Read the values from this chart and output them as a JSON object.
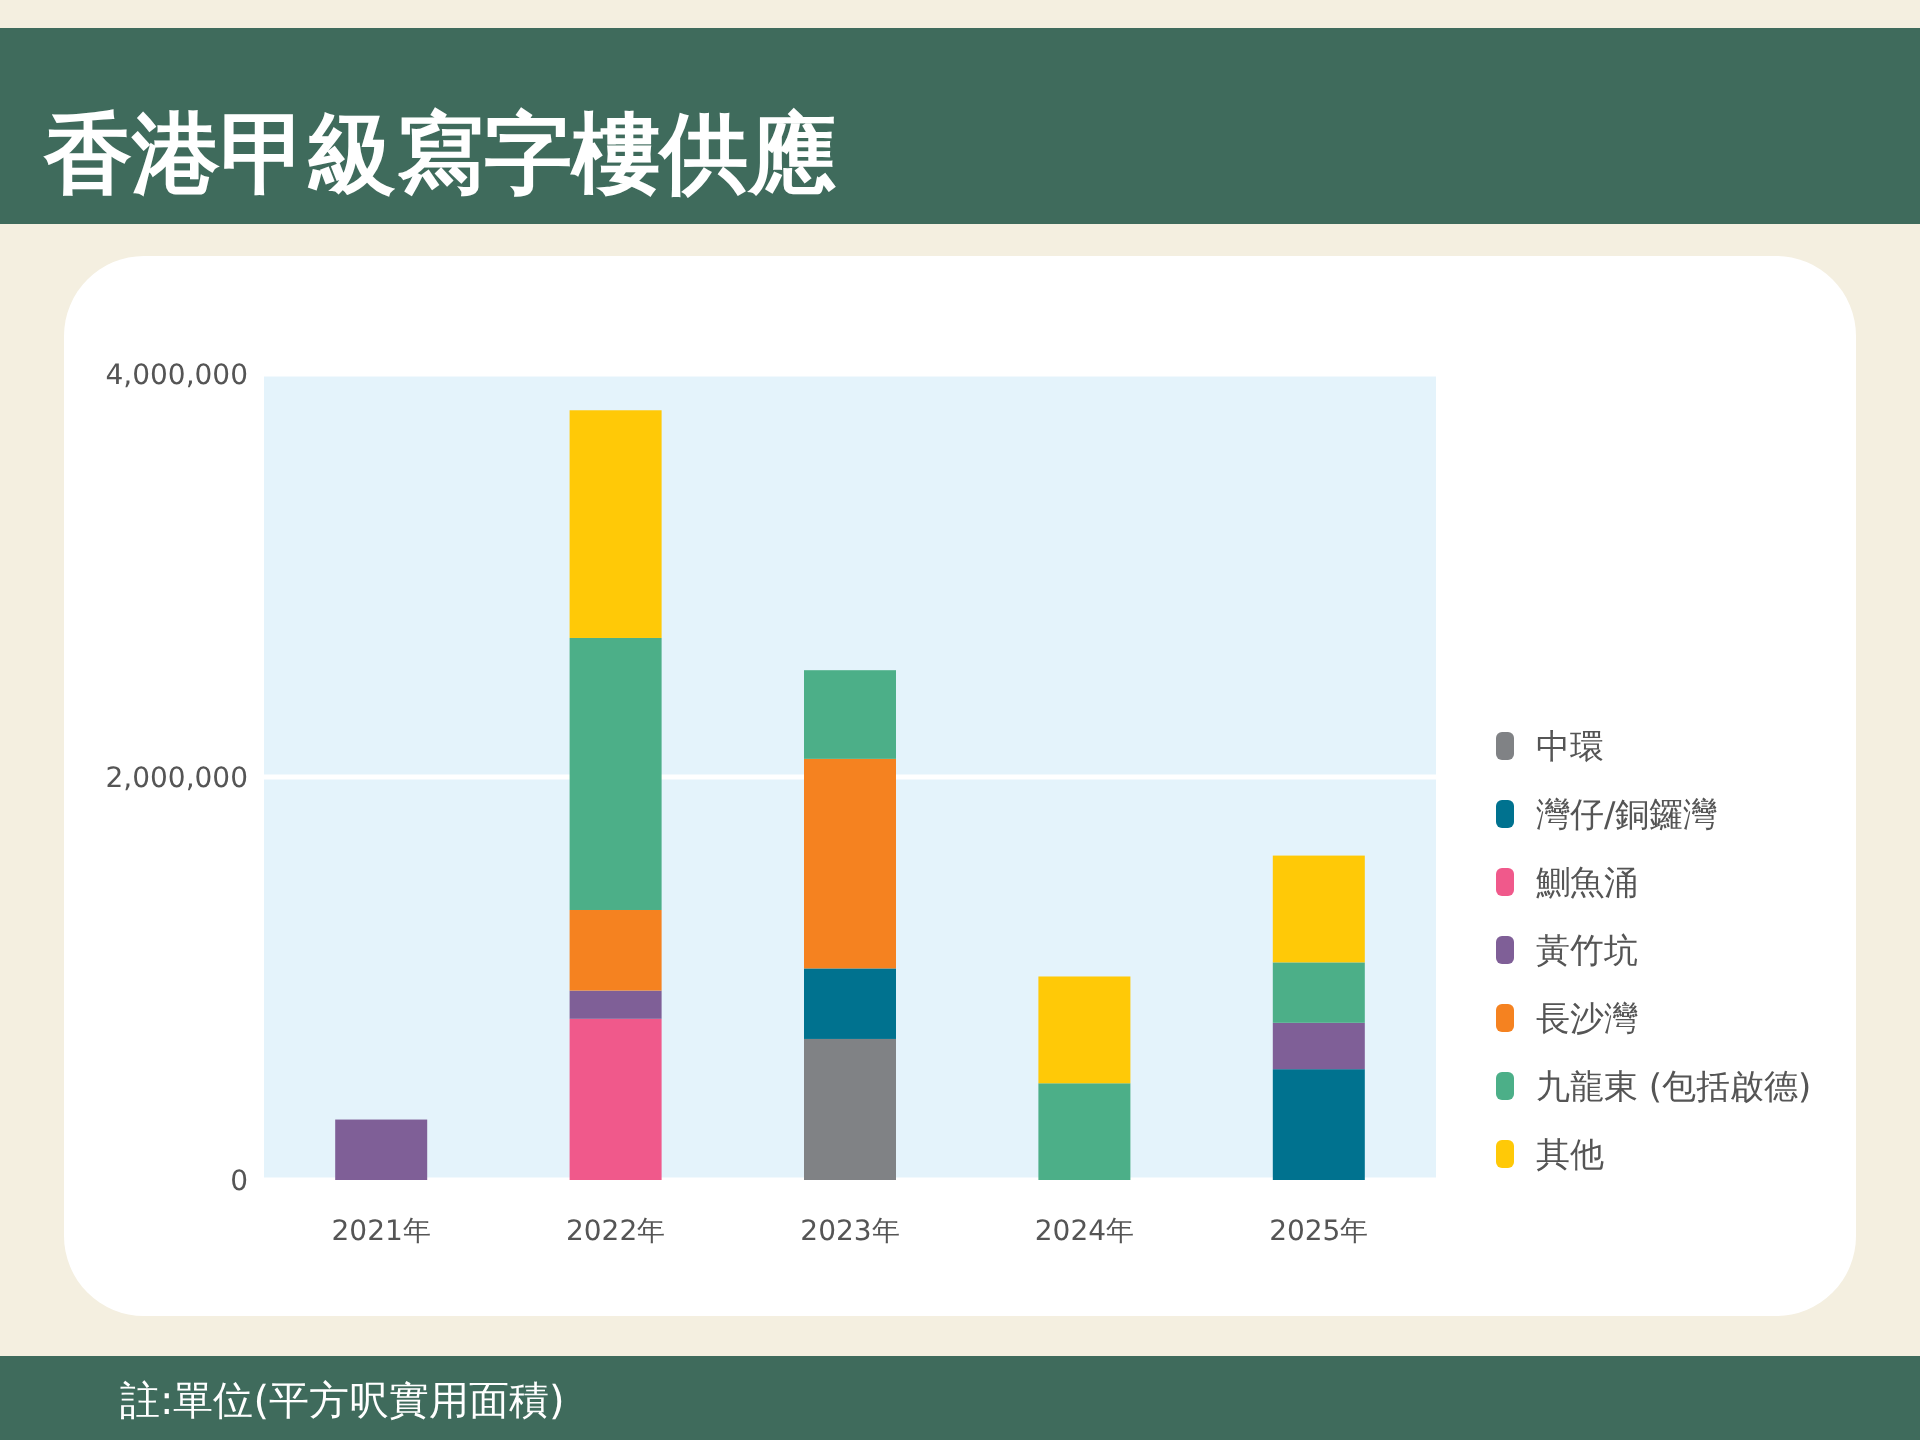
{
  "chart_data": {
    "type": "bar",
    "stacked": true,
    "title": "香港甲級寫字樓供應",
    "categories": [
      "2021年",
      "2022年",
      "2023年",
      "2024年",
      "2025年"
    ],
    "series": [
      {
        "name": "中環",
        "color": "#808285",
        "values": [
          null,
          null,
          700000,
          null,
          null
        ]
      },
      {
        "name": "灣仔/銅鑼灣",
        "color": "#00728f",
        "values": [
          null,
          null,
          350000,
          null,
          550000
        ]
      },
      {
        "name": "鰂魚涌",
        "color": "#f0598b",
        "values": [
          null,
          800000,
          null,
          null,
          null
        ]
      },
      {
        "name": "黃竹坑",
        "color": "#7f5f97",
        "values": [
          300000,
          140000,
          null,
          null,
          230000
        ]
      },
      {
        "name": "長沙灣",
        "color": "#f58220",
        "values": [
          null,
          400000,
          1040000,
          null,
          null
        ]
      },
      {
        "name": "九龍東 (包括啟德)",
        "color": "#4caf88",
        "values": [
          null,
          1350000,
          440000,
          480000,
          300000
        ]
      },
      {
        "name": "其他",
        "color": "#ffc907",
        "values": [
          null,
          1130000,
          null,
          530000,
          530000
        ]
      }
    ],
    "ylim": [
      0,
      4000000
    ],
    "yticks": [
      {
        "value": 0,
        "label": "0"
      },
      {
        "value": 2000000,
        "label": "2,000,000"
      },
      {
        "value": 4000000,
        "label": "4,000,000"
      }
    ],
    "grid": "y",
    "legend": "right",
    "annotations": [
      "註:單位(平方呎實用面積)"
    ]
  }
}
